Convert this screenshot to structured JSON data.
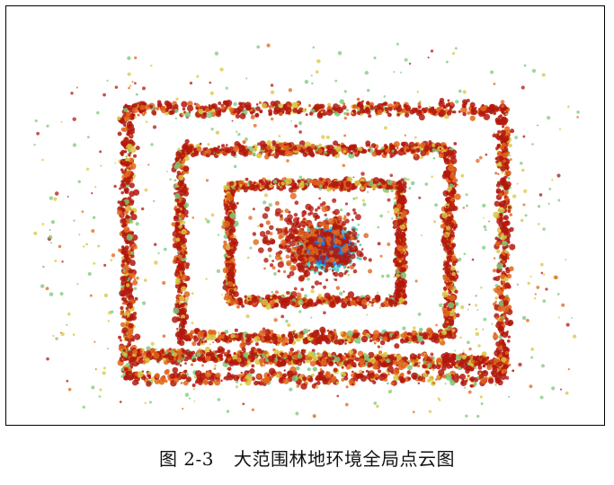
{
  "figure": {
    "label": "图 2-3",
    "title": "大范围林地环境全局点云图"
  },
  "colors": {
    "frame": "#000000",
    "dense_red": "#b3180d",
    "orange": "#e0651a",
    "yellow": "#d9c640",
    "green": "#7ec77a",
    "teal": "#3cc9c4",
    "blue": "#1e7de0"
  }
}
